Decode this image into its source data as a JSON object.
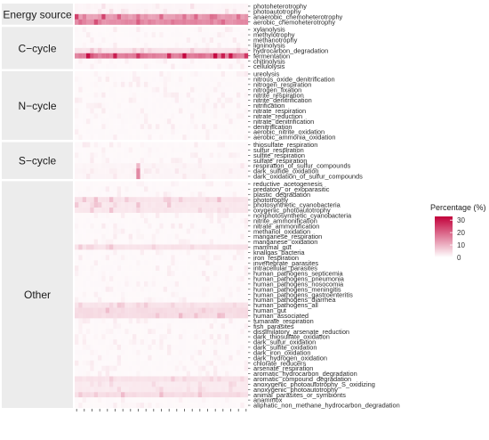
{
  "chart_data": {
    "type": "heatmap",
    "title": "",
    "xlabel": "",
    "ylabel": "",
    "n_columns": 45,
    "groups": [
      {
        "label": "Energy source",
        "rows": [
          "photoheterotrophy",
          "photoautotrophy",
          "anaerobic_chemoheterotrophy",
          "aerobic_chemoheterotrophy"
        ]
      },
      {
        "label": "C−cycle",
        "rows": [
          "xylanolysis",
          "methylotrophy",
          "methanotrophy",
          "ligninolysis",
          "hydrocarbon_degradation",
          "fermentation",
          "chitinolysis",
          "cellulolysis"
        ]
      },
      {
        "label": "N−cycle",
        "rows": [
          "ureolysis",
          "nitrous_oxide_denitrification",
          "nitrogen_respiration",
          "nitrogen_fixation",
          "nitrite_respiration",
          "nitrite_denitrification",
          "nitrification",
          "nitrate_respiration",
          "nitrate_reduction",
          "nitrate_denitrification",
          "denitrification",
          "aerobic_nitrite_oxidation",
          "aerobic_ammonia_oxidation"
        ]
      },
      {
        "label": "S−cycle",
        "rows": [
          "thiosulfate_respiration",
          "sulfur_respiration",
          "sulfite_respiration",
          "sulfate_respiration",
          "respiration_of_sulfur_compounds",
          "dark_sulfide_oxidation",
          "dark_oxidation_of_sulfur_compounds"
        ]
      },
      {
        "label": "Other",
        "rows": [
          "reductive_acetogenesis",
          "predatory_or_exoparasitic",
          "plastic_degradation",
          "phototrophy",
          "photosynthetic_cyanobacteria",
          "oxygenic_photoautotrophy",
          "nonphotosynthetic_cyanobacteria",
          "nitrite_ammonification",
          "nitrate_ammonification",
          "methanol_oxidation",
          "manganese_respiration",
          "manganese_oxidation",
          "mammal_gut",
          "knallgas_bacteria",
          "iron_respiration",
          "invertebrate_parasites",
          "intracellular_parasites",
          "human_pathogens_septicemia",
          "human_pathogens_pneumonia",
          "human_pathogens_nosocomia",
          "human_pathogens_meningitis",
          "human_pathogens_gastroenteritis",
          "human_pathogens_diarrhea",
          "human_pathogens_all",
          "human_gut",
          "human_associated",
          "fumarate_respiration",
          "fish_parasites",
          "dissimilatory_arsenate_reduction",
          "dark_thiosulfate_oxidation",
          "dark_sulfur_oxidation",
          "dark_sulfite_oxidation",
          "dark_iron_oxidation",
          "dark_hydrogen_oxidation",
          "chlorate_reducers",
          "arsenate_respiration",
          "aromatic_hydrocarbon_degradation",
          "aromatic_compound_degradation",
          "anoxygenic_photoautotrophy_S_oxidizing",
          "anoxygenic_photoautotrophy",
          "animal_parasites_or_symbionts",
          "anammox",
          "aliphatic_non_methane_hydrocarbon_degradation"
        ]
      }
    ],
    "row_profiles": {
      "anaerobic_chemoheterotrophy": {
        "base": 8,
        "peak": 18
      },
      "aerobic_chemoheterotrophy": {
        "base": 10,
        "peak": 18
      },
      "photoautotrophy": {
        "base": 0.4,
        "peak": 2
      },
      "photoheterotrophy": {
        "base": 0.4,
        "peak": 2
      },
      "fermentation": {
        "base": 12,
        "peak": 32
      },
      "hydrocarbon_degradation": {
        "base": 1.5,
        "peak": 5
      },
      "respiration_of_sulfur_compounds": {
        "base": 0.4,
        "peak": 1.5
      },
      "dark_sulfide_oxidation": {
        "base": 0.4,
        "peak": 1.5
      },
      "dark_oxidation_of_sulfur_compounds": {
        "base": 0.4,
        "peak": 1.5
      },
      "phototrophy": {
        "base": 1.5,
        "peak": 6
      },
      "photosynthetic_cyanobacteria": {
        "base": 1.2,
        "peak": 5
      },
      "oxygenic_photoautotrophy": {
        "base": 1.2,
        "peak": 5
      },
      "mammal_gut": {
        "base": 1.5,
        "peak": 5
      },
      "human_gut": {
        "base": 2,
        "peak": 6
      },
      "human_associated": {
        "base": 2,
        "peak": 6
      },
      "human_pathogens_all": {
        "base": 1.5,
        "peak": 5
      },
      "animal_parasites_or_symbionts": {
        "base": 2,
        "peak": 6
      },
      "aromatic_compound_degradation": {
        "base": 1.5,
        "peak": 5
      },
      "anoxygenic_photoautotrophy": {
        "base": 1,
        "peak": 3
      },
      "anoxygenic_photoautotrophy_S_oxidizing": {
        "base": 1,
        "peak": 3
      },
      "default": {
        "base": 0.2,
        "peak": 1.2
      }
    },
    "hotspots": [
      {
        "row": "dark_sulfide_oxidation",
        "col": 16,
        "value": 12
      },
      {
        "row": "dark_oxidation_of_sulfur_compounds",
        "col": 16,
        "value": 12
      },
      {
        "row": "respiration_of_sulfur_compounds",
        "col": 16,
        "value": 6
      },
      {
        "row": "fermentation",
        "col": 3,
        "value": 30
      },
      {
        "row": "fermentation",
        "col": 10,
        "value": 28
      },
      {
        "row": "fermentation",
        "col": 24,
        "value": 26
      },
      {
        "row": "anaerobic_chemoheterotrophy",
        "col": 0,
        "value": 22
      },
      {
        "row": "anaerobic_chemoheterotrophy",
        "col": 7,
        "value": 22
      },
      {
        "row": "aerobic_chemoheterotrophy",
        "col": 5,
        "value": 20
      }
    ],
    "legend": {
      "title": "Percentage (%)",
      "ticks": [
        0,
        10,
        20,
        30
      ],
      "range": [
        0,
        33
      ],
      "low_color": "#ffffff",
      "high_color": "#c2003a",
      "position": "right"
    },
    "strip_fill": "#ececec",
    "grid": false
  }
}
